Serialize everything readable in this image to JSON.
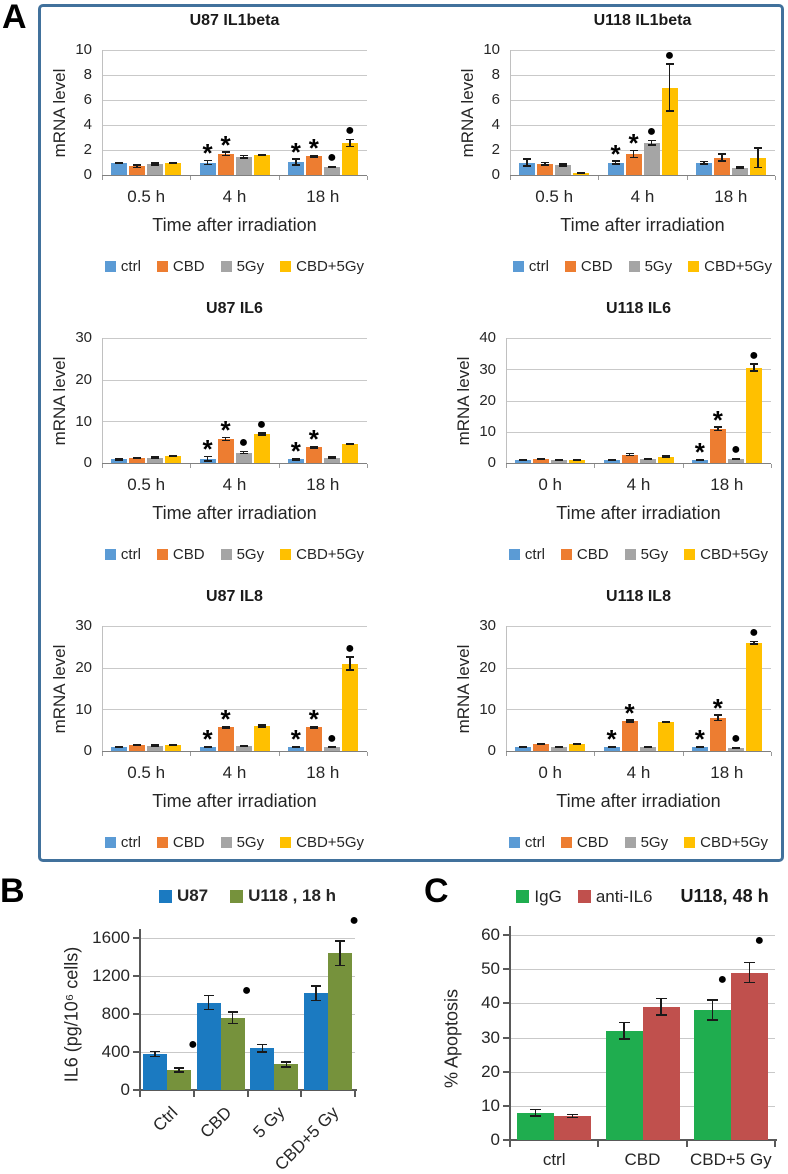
{
  "panels": {
    "a": {
      "label": "A"
    },
    "b": {
      "label": "B"
    },
    "c": {
      "label": "C"
    }
  },
  "colors": {
    "ctrl_blue": "#5B9BD5",
    "cbd_orange": "#ED7D31",
    "gy5_gray": "#A5A5A5",
    "cbd5gy_yellow": "#FFC000",
    "u87_blue": "#1B7AC1",
    "u118_olive": "#76923C",
    "igg_green": "#1FAD4F",
    "anti_il6_brick": "#C0504D",
    "panel_border": "#41719C",
    "gridline": "#C9C9C9",
    "axis_dark": "#595959",
    "annotation": "#000000"
  },
  "chart_data": [
    {
      "panel": "A",
      "type": "bar",
      "title": "U87 IL1beta",
      "ylabel": "mRNA level",
      "xlabel": "Time after irradiation",
      "ymax": 10,
      "yticks": [
        0,
        2,
        4,
        6,
        8,
        10
      ],
      "categories": [
        "0.5 h",
        "4 h",
        "18 h"
      ],
      "legend_position": "bottom",
      "series": [
        {
          "name": "ctrl",
          "color": "#5B9BD5",
          "values": [
            0.95,
            1.0,
            1.05
          ],
          "errors": [
            0.05,
            0.18,
            0.25
          ],
          "marks": [
            "",
            "*",
            "*"
          ]
        },
        {
          "name": "CBD",
          "color": "#ED7D31",
          "values": [
            0.7,
            1.7,
            1.5
          ],
          "errors": [
            0.12,
            0.15,
            0.08
          ],
          "marks": [
            "",
            "*",
            "*"
          ]
        },
        {
          "name": "5Gy",
          "color": "#A5A5A5",
          "values": [
            0.9,
            1.45,
            0.65
          ],
          "errors": [
            0.1,
            0.12,
            0.06
          ],
          "marks": [
            "",
            "",
            "dot"
          ]
        },
        {
          "name": "CBD+5Gy",
          "color": "#FFC000",
          "values": [
            0.95,
            1.6,
            2.55
          ],
          "errors": [
            0.05,
            0.06,
            0.3
          ],
          "marks": [
            "",
            "",
            "dot"
          ]
        }
      ]
    },
    {
      "panel": "A",
      "type": "bar",
      "title": "U118 IL1beta",
      "ylabel": "mRNA level",
      "xlabel": "Time after irradiation",
      "ymax": 10,
      "yticks": [
        0,
        2,
        4,
        6,
        8,
        10
      ],
      "categories": [
        "0.5 h",
        "4 h",
        "18 h"
      ],
      "legend_position": "bottom",
      "series": [
        {
          "name": "ctrl",
          "color": "#5B9BD5",
          "values": [
            1.0,
            1.0,
            1.0
          ],
          "errors": [
            0.3,
            0.15,
            0.12
          ],
          "marks": [
            "",
            "*",
            ""
          ]
        },
        {
          "name": "CBD",
          "color": "#ED7D31",
          "values": [
            0.9,
            1.7,
            1.4
          ],
          "errors": [
            0.12,
            0.3,
            0.3
          ],
          "marks": [
            "",
            "*",
            ""
          ]
        },
        {
          "name": "5Gy",
          "color": "#A5A5A5",
          "values": [
            0.8,
            2.6,
            0.6
          ],
          "errors": [
            0.1,
            0.2,
            0.08
          ],
          "marks": [
            "",
            "dot",
            ""
          ]
        },
        {
          "name": "CBD+5Gy",
          "color": "#FFC000",
          "values": [
            0.15,
            7.0,
            1.4
          ],
          "errors": [
            0.04,
            1.9,
            0.8
          ],
          "marks": [
            "",
            "dot",
            ""
          ]
        }
      ]
    },
    {
      "panel": "A",
      "type": "bar",
      "title": "U87 IL6",
      "ylabel": "mRNA level",
      "xlabel": "Time after irradiation",
      "ymax": 30,
      "yticks": [
        0,
        10,
        20,
        30
      ],
      "categories": [
        "0.5 h",
        "4 h",
        "18 h"
      ],
      "legend_position": "bottom",
      "series": [
        {
          "name": "ctrl",
          "color": "#5B9BD5",
          "values": [
            0.9,
            1.0,
            0.9
          ],
          "errors": [
            0.2,
            0.6,
            0.2
          ],
          "marks": [
            "",
            "*",
            "*"
          ]
        },
        {
          "name": "CBD",
          "color": "#ED7D31",
          "values": [
            1.2,
            5.8,
            3.8
          ],
          "errors": [
            0.15,
            0.4,
            0.2
          ],
          "marks": [
            "",
            "*",
            "*"
          ]
        },
        {
          "name": "5Gy",
          "color": "#A5A5A5",
          "values": [
            1.3,
            2.5,
            1.3
          ],
          "errors": [
            0.15,
            0.3,
            0.15
          ],
          "marks": [
            "",
            "dot",
            ""
          ]
        },
        {
          "name": "CBD+5Gy",
          "color": "#FFC000",
          "values": [
            1.6,
            7.0,
            4.5
          ],
          "errors": [
            0.1,
            0.3,
            0.15
          ],
          "marks": [
            "",
            "dot",
            ""
          ]
        }
      ]
    },
    {
      "panel": "A",
      "type": "bar",
      "title": "U118 IL6",
      "ylabel": "mRNA level",
      "xlabel": "Time after irradiation",
      "ymax": 40,
      "yticks": [
        0,
        10,
        20,
        30,
        40
      ],
      "categories": [
        "0 h",
        "4 h",
        "18 h"
      ],
      "legend_position": "bottom",
      "series": [
        {
          "name": "ctrl",
          "color": "#5B9BD5",
          "values": [
            1.0,
            1.0,
            1.0
          ],
          "errors": [
            0.25,
            0.15,
            0.15
          ],
          "marks": [
            "",
            "",
            "*"
          ]
        },
        {
          "name": "CBD",
          "color": "#ED7D31",
          "values": [
            1.3,
            2.7,
            11.0
          ],
          "errors": [
            0.2,
            0.35,
            0.6
          ],
          "marks": [
            "",
            "",
            "*"
          ]
        },
        {
          "name": "5Gy",
          "color": "#A5A5A5",
          "values": [
            0.9,
            1.2,
            1.3
          ],
          "errors": [
            0.15,
            0.15,
            0.2
          ],
          "marks": [
            "",
            "",
            "dot"
          ]
        },
        {
          "name": "CBD+5Gy",
          "color": "#FFC000",
          "values": [
            1.0,
            2.0,
            30.5
          ],
          "errors": [
            0.15,
            0.25,
            1.2
          ],
          "marks": [
            "",
            "",
            "dot"
          ]
        }
      ]
    },
    {
      "panel": "A",
      "type": "bar",
      "title": "U87 IL8",
      "ylabel": "mRNA level",
      "xlabel": "Time after irradiation",
      "ymax": 30,
      "yticks": [
        0,
        10,
        20,
        30
      ],
      "categories": [
        "0.5 h",
        "4 h",
        "18 h"
      ],
      "legend_position": "bottom",
      "series": [
        {
          "name": "ctrl",
          "color": "#5B9BD5",
          "values": [
            0.9,
            1.0,
            1.0
          ],
          "errors": [
            0.15,
            0.2,
            0.15
          ],
          "marks": [
            "",
            "*",
            "*"
          ]
        },
        {
          "name": "CBD",
          "color": "#ED7D31",
          "values": [
            1.4,
            5.7,
            5.7
          ],
          "errors": [
            0.15,
            0.25,
            0.25
          ],
          "marks": [
            "",
            "*",
            "*"
          ]
        },
        {
          "name": "5Gy",
          "color": "#A5A5A5",
          "values": [
            1.3,
            1.2,
            0.9
          ],
          "errors": [
            0.2,
            0.15,
            0.12
          ],
          "marks": [
            "",
            "",
            "dot"
          ]
        },
        {
          "name": "CBD+5Gy",
          "color": "#FFC000",
          "values": [
            1.5,
            6.0,
            21.0
          ],
          "errors": [
            0.12,
            0.3,
            1.6
          ],
          "marks": [
            "",
            "",
            "dot"
          ]
        }
      ]
    },
    {
      "panel": "A",
      "type": "bar",
      "title": "U118 IL8",
      "ylabel": "mRNA level",
      "xlabel": "Time after irradiation",
      "ymax": 30,
      "yticks": [
        0,
        10,
        20,
        30
      ],
      "categories": [
        "0 h",
        "4 h",
        "18 h"
      ],
      "legend_position": "bottom",
      "series": [
        {
          "name": "ctrl",
          "color": "#5B9BD5",
          "values": [
            0.9,
            1.0,
            1.0
          ],
          "errors": [
            0.12,
            0.15,
            0.2
          ],
          "marks": [
            "",
            "*",
            "*"
          ]
        },
        {
          "name": "CBD",
          "color": "#ED7D31",
          "values": [
            1.6,
            7.2,
            8.0
          ],
          "errors": [
            0.12,
            0.3,
            0.7
          ],
          "marks": [
            "",
            "*",
            "*"
          ]
        },
        {
          "name": "5Gy",
          "color": "#A5A5A5",
          "values": [
            1.0,
            0.9,
            0.8
          ],
          "errors": [
            0.1,
            0.08,
            0.12
          ],
          "marks": [
            "",
            "",
            "dot"
          ]
        },
        {
          "name": "CBD+5Gy",
          "color": "#FFC000",
          "values": [
            1.6,
            7.0,
            26.0
          ],
          "errors": [
            0.12,
            0.15,
            0.4
          ],
          "marks": [
            "",
            "",
            "dot"
          ]
        }
      ]
    },
    {
      "panel": "B",
      "type": "bar",
      "title": "",
      "ylabel": "IL6 (pg/10⁶ cells)",
      "xlabel": "",
      "ymax": 1600,
      "yticks": [
        0,
        400,
        800,
        1200,
        1600
      ],
      "categories": [
        "Ctrl",
        "CBD",
        "5 Gy",
        "CBD+5 Gy"
      ],
      "legend_position": "top",
      "series": [
        {
          "name": "U87",
          "color": "#1B7AC1",
          "values": [
            380,
            920,
            440,
            1020
          ],
          "errors": [
            30,
            75,
            40,
            80
          ],
          "marks": [
            "",
            "",
            "",
            ""
          ]
        },
        {
          "name": "U118 , 18 h",
          "color": "#76923C",
          "values": [
            210,
            760,
            270,
            1440
          ],
          "errors": [
            25,
            65,
            30,
            130
          ],
          "marks": [
            "dot",
            "dot",
            "",
            "dot"
          ],
          "mark_levels": [
            390,
            960,
            null,
            1700
          ]
        }
      ]
    },
    {
      "panel": "C",
      "type": "bar",
      "title": "",
      "ylabel": "% Apoptosis",
      "xlabel": "",
      "ymax": 60,
      "yticks": [
        0,
        10,
        20,
        30,
        40,
        50,
        60
      ],
      "categories": [
        "ctrl",
        "CBD",
        "CBD+5 Gy"
      ],
      "legend_position": "top",
      "legend_note": "U118, 48 h",
      "series": [
        {
          "name": "IgG",
          "color": "#1FAD4F",
          "values": [
            8,
            32,
            38
          ],
          "errors": [
            1,
            2.5,
            3
          ],
          "marks": [
            "",
            "",
            "dot"
          ],
          "mark_levels": [
            null,
            null,
            44.5
          ]
        },
        {
          "name": "anti-IL6",
          "color": "#C0504D",
          "values": [
            7,
            39,
            49
          ],
          "errors": [
            0.5,
            2.5,
            3
          ],
          "marks": [
            "",
            "",
            "dot"
          ],
          "mark_levels": [
            null,
            null,
            56
          ]
        }
      ]
    }
  ]
}
